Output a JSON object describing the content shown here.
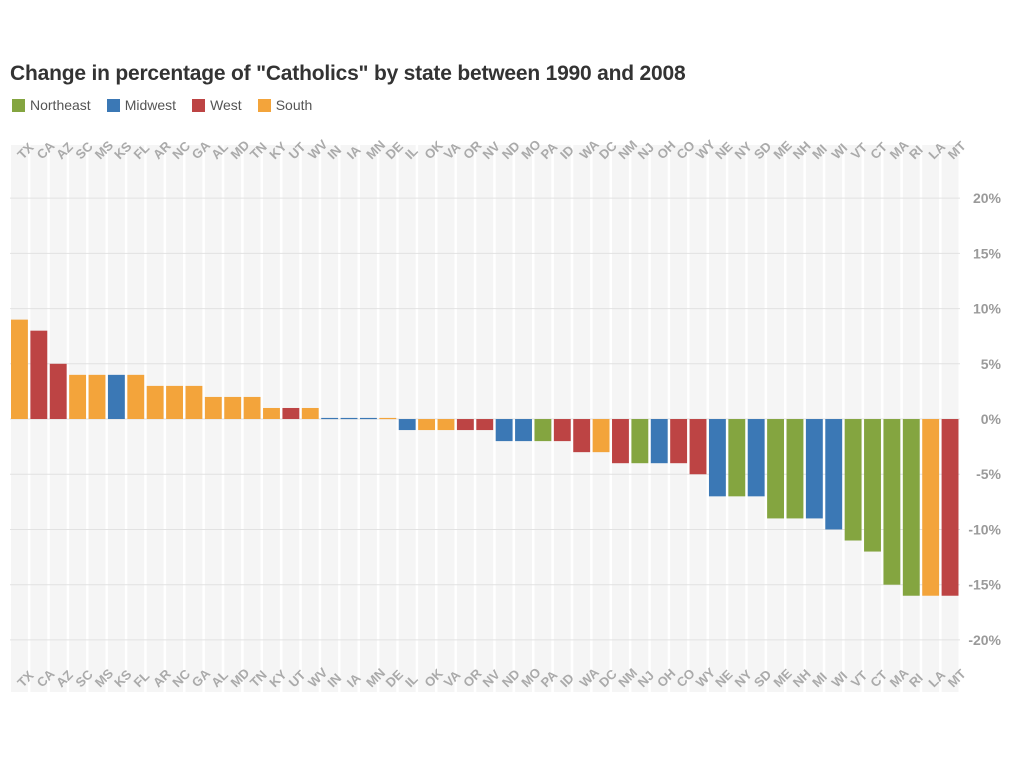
{
  "chart_data": {
    "type": "bar",
    "title": "Change in percentage of \"Catholics\" by state between 1990 and 2008",
    "xlabel": "",
    "ylabel": "",
    "ylim": [
      -22,
      23
    ],
    "y_ticks": [
      20,
      15,
      10,
      5,
      0,
      -5,
      -10,
      -15,
      -20
    ],
    "y_tick_labels": [
      "20%",
      "15%",
      "10%",
      "5%",
      "0%",
      "-5%",
      "-10%",
      "-15%",
      "-20%"
    ],
    "grid": true,
    "legend_position": "top-left",
    "legend": [
      {
        "name": "Northeast",
        "color": "#84a540"
      },
      {
        "name": "Midwest",
        "color": "#3b78b5"
      },
      {
        "name": "West",
        "color": "#bd4444"
      },
      {
        "name": "South",
        "color": "#f3a43b"
      }
    ],
    "categories": [
      "TX",
      "CA",
      "AZ",
      "SC",
      "MS",
      "KS",
      "FL",
      "AR",
      "NC",
      "GA",
      "AL",
      "MD",
      "TN",
      "KY",
      "UT",
      "WV",
      "IN",
      "IA",
      "MN",
      "DE",
      "IL",
      "OK",
      "VA",
      "OR",
      "NV",
      "ND",
      "MO",
      "PA",
      "ID",
      "WA",
      "DC",
      "NM",
      "NJ",
      "OH",
      "CO",
      "WY",
      "NE",
      "NY",
      "SD",
      "ME",
      "NH",
      "MI",
      "WI",
      "VT",
      "CT",
      "MA",
      "RI",
      "LA",
      "MT"
    ],
    "values": [
      9,
      8,
      5,
      4,
      4,
      4,
      4,
      3,
      3,
      3,
      2,
      2,
      2,
      1,
      1,
      1,
      0.1,
      0.1,
      0.1,
      0.1,
      -1,
      -1,
      -1,
      -1,
      -1,
      -2,
      -2,
      -2,
      -2,
      -3,
      -3,
      -4,
      -4,
      -4,
      -4,
      -5,
      -7,
      -7,
      -7,
      -9,
      -9,
      -9,
      -10,
      -11,
      -12,
      -15,
      -16,
      -16,
      -16
    ],
    "regions": [
      "South",
      "West",
      "West",
      "South",
      "South",
      "Midwest",
      "South",
      "South",
      "South",
      "South",
      "South",
      "South",
      "South",
      "South",
      "West",
      "South",
      "Midwest",
      "Midwest",
      "Midwest",
      "South",
      "Midwest",
      "South",
      "South",
      "West",
      "West",
      "Midwest",
      "Midwest",
      "Northeast",
      "West",
      "West",
      "South",
      "West",
      "Northeast",
      "Midwest",
      "West",
      "West",
      "Midwest",
      "Northeast",
      "Midwest",
      "Northeast",
      "Northeast",
      "Midwest",
      "Midwest",
      "Northeast",
      "Northeast",
      "Northeast",
      "Northeast",
      "South",
      "West"
    ]
  }
}
